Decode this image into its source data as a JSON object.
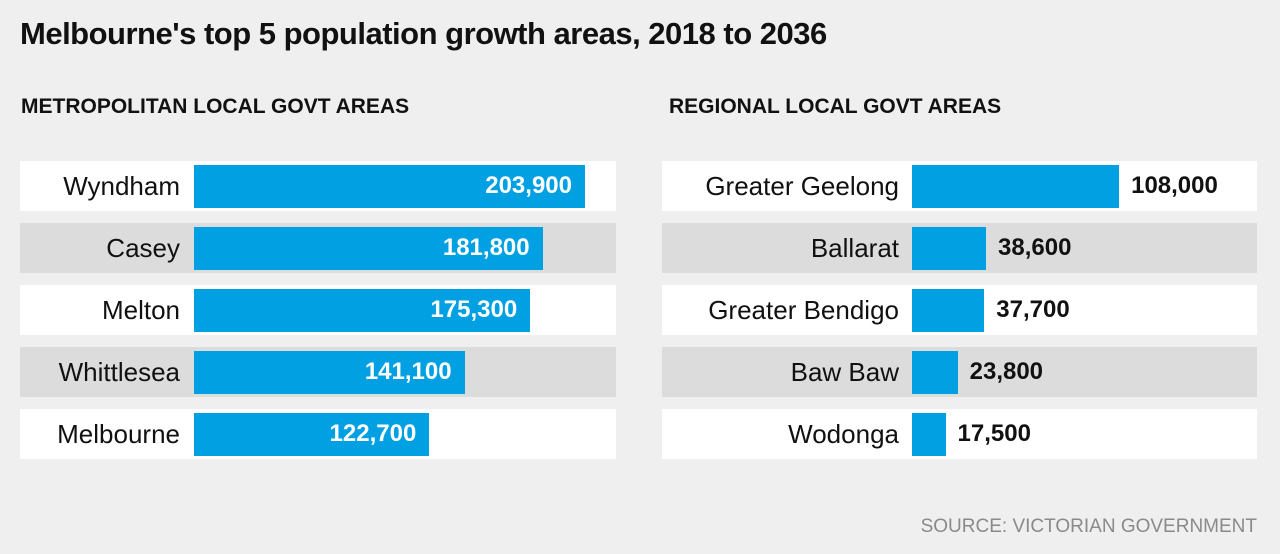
{
  "title": "Melbourne's top 5 population growth areas, 2018 to 2036",
  "source": "SOURCE: VICTORIAN GOVERNMENT",
  "colors": {
    "bar": "#00a0e3",
    "background": "#efefef",
    "row_alt": "#dcdcdc"
  },
  "chart_data": [
    {
      "type": "bar",
      "orientation": "horizontal",
      "title": "METROPOLITAN LOCAL GOVT AREAS",
      "categories": [
        "Wyndham",
        "Casey",
        "Melton",
        "Whittlesea",
        "Melbourne"
      ],
      "values": [
        203900,
        181800,
        175300,
        141100,
        122700
      ],
      "data_labels": [
        "203,900",
        "181,800",
        "175,300",
        "141,100",
        "122,700"
      ],
      "label_position": "inside-end"
    },
    {
      "type": "bar",
      "orientation": "horizontal",
      "title": "REGIONAL LOCAL GOVT AREAS",
      "categories": [
        "Greater Geelong",
        "Ballarat",
        "Greater Bendigo",
        "Baw Baw",
        "Wodonga"
      ],
      "values": [
        108000,
        38600,
        37700,
        23800,
        17500
      ],
      "data_labels": [
        "108,000",
        "38,600",
        "37,700",
        "23,800",
        "17,500"
      ],
      "label_position": "outside-end"
    }
  ]
}
